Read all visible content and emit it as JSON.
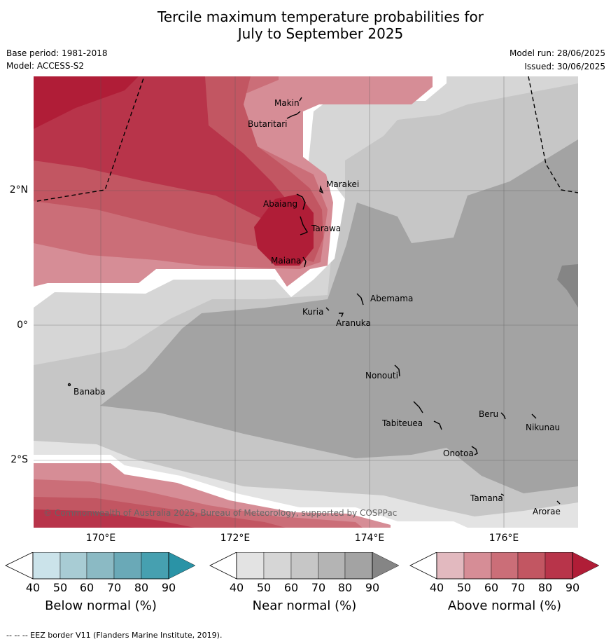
{
  "title_line1": "Tercile maximum temperature probabilities for",
  "title_line2": "July to September 2025",
  "base_period": "Base period: 1981-2018",
  "model": "Model: ACCESS-S2",
  "model_run": "Model run: 28/06/2025",
  "issued": "Issued: 30/06/2025",
  "lat_labels": [
    "2°N",
    "0°",
    "2°S"
  ],
  "lon_labels": [
    "170°E",
    "172°E",
    "174°E",
    "176°E"
  ],
  "places": [
    "Makin",
    "Butaritari",
    "Marakei",
    "Abaiang",
    "Tarawa",
    "Maiana",
    "Abemama",
    "Kuria",
    "Aranuka",
    "Nonouti",
    "Banaba",
    "Tabiteuea",
    "Beru",
    "Nikunau",
    "Onotoa",
    "Tamana",
    "Arorae"
  ],
  "copyright": "© Commonwealth of Australia 2025, Bureau of Meteorology, supported by COSPPac",
  "colorbars": [
    {
      "label": "Below normal (%)",
      "colors": [
        "#cbe3ea",
        "#a8ccd4",
        "#8bbac4",
        "#6aa9b7",
        "#46a0b0",
        "#2a93a6"
      ]
    },
    {
      "label": "Near normal (%)",
      "colors": [
        "#e3e3e3",
        "#d6d6d6",
        "#c6c6c6",
        "#b4b4b4",
        "#a3a3a3",
        "#858585"
      ]
    },
    {
      "label": "Above normal (%)",
      "colors": [
        "#e2b9bf",
        "#d68d96",
        "#cb6e78",
        "#c25662",
        "#b8344a",
        "#b01d37"
      ]
    }
  ],
  "colorbar_ticks": [
    "40",
    "50",
    "60",
    "70",
    "80",
    "90"
  ],
  "footer": "--  --  -- EEZ border V11 (Flanders Marine Institute, 2019)."
}
